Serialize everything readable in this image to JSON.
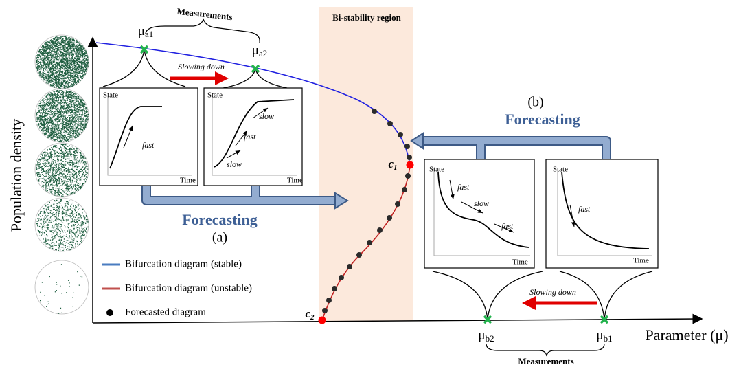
{
  "region_label": "Bi-stability region",
  "axes": {
    "y_label": "Population density",
    "x_label": "Parameter (μ)"
  },
  "points": {
    "mu_a1": {
      "base": "μ",
      "sub": "a1"
    },
    "mu_a2": {
      "base": "μ",
      "sub": "a2"
    },
    "mu_b1": {
      "base": "μ",
      "sub": "b1"
    },
    "mu_b2": {
      "base": "μ",
      "sub": "b2"
    },
    "c1": {
      "base": "c",
      "sub": "1"
    },
    "c2": {
      "base": "c",
      "sub": "2"
    }
  },
  "panel_a": {
    "measurements": "Measurements",
    "slowing": "Slowing down",
    "forecasting": "Forecasting",
    "label": "(a)",
    "insets": [
      {
        "state": "State",
        "time": "Time",
        "notes": [
          "fast"
        ]
      },
      {
        "state": "State",
        "time": "Time",
        "notes": [
          "slow",
          "fast",
          "slow"
        ]
      }
    ]
  },
  "panel_b": {
    "measurements": "Measurements",
    "slowing": "Slowing down",
    "forecasting": "Forecasting",
    "label": "(b)",
    "insets": [
      {
        "state": "State",
        "time": "Time",
        "notes": [
          "fast",
          "slow",
          "fast"
        ]
      },
      {
        "state": "State",
        "time": "Time",
        "notes": [
          "fast"
        ]
      }
    ]
  },
  "legend": [
    "Bifurcation diagram (stable)",
    "Bifurcation diagram (unstable)",
    "Forecasted diagram"
  ]
}
